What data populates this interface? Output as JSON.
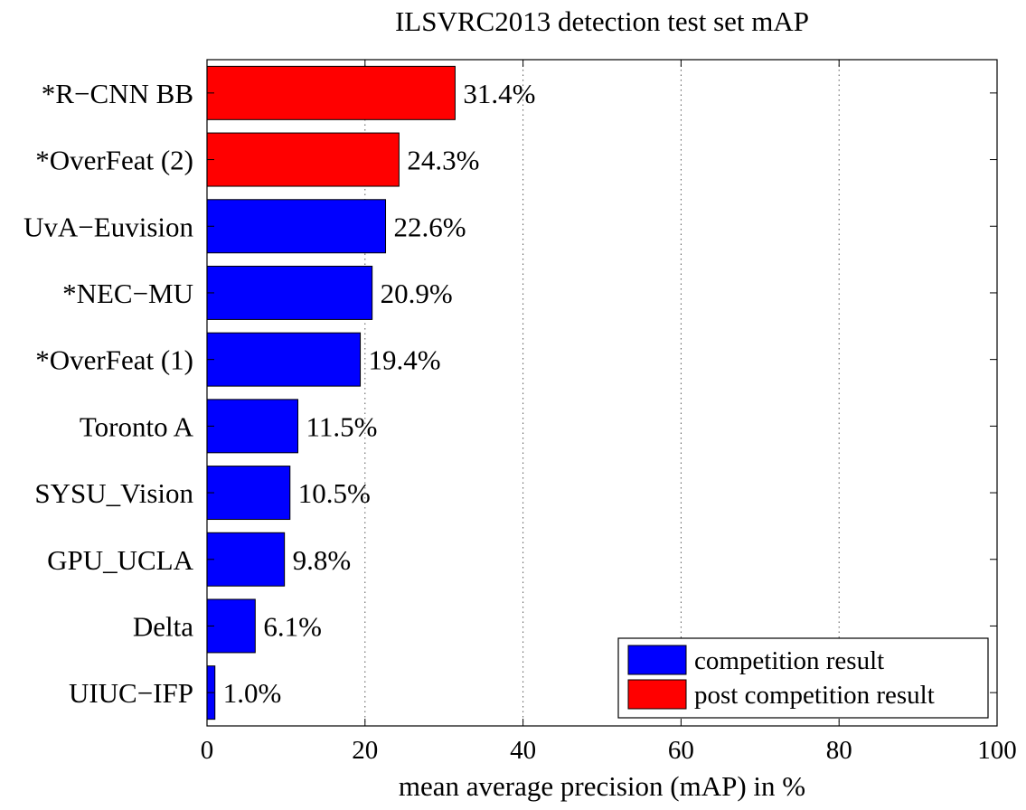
{
  "chart_data": {
    "type": "bar",
    "orientation": "horizontal",
    "title": "ILSVRC2013 detection test set mAP",
    "xlabel": "mean average precision (mAP) in %",
    "ylabel": "",
    "xlim": [
      0,
      100
    ],
    "xticks": [
      0,
      20,
      40,
      60,
      80,
      100
    ],
    "xtick_labels": [
      "0",
      "20",
      "40",
      "60",
      "80",
      "100"
    ],
    "grid": "vertical dotted",
    "legend_position": "bottom-right",
    "legend": [
      {
        "label": "competition result",
        "color": "#0000ff"
      },
      {
        "label": "post competition result",
        "color": "#ff0000"
      }
    ],
    "categories": [
      "*R−CNN BB",
      "*OverFeat (2)",
      "UvA−Euvision",
      "*NEC−MU",
      "*OverFeat (1)",
      "Toronto A",
      "SYSU_Vision",
      "GPU_UCLA",
      "Delta",
      "UIUC−IFP"
    ],
    "values": [
      31.4,
      24.3,
      22.6,
      20.9,
      19.4,
      11.5,
      10.5,
      9.8,
      6.1,
      1.0
    ],
    "value_labels": [
      "31.4%",
      "24.3%",
      "22.6%",
      "20.9%",
      "19.4%",
      "11.5%",
      "10.5%",
      "9.8%",
      "6.1%",
      "1.0%"
    ],
    "bar_groups": [
      "post",
      "post",
      "competition",
      "competition",
      "competition",
      "competition",
      "competition",
      "competition",
      "competition",
      "competition"
    ]
  }
}
